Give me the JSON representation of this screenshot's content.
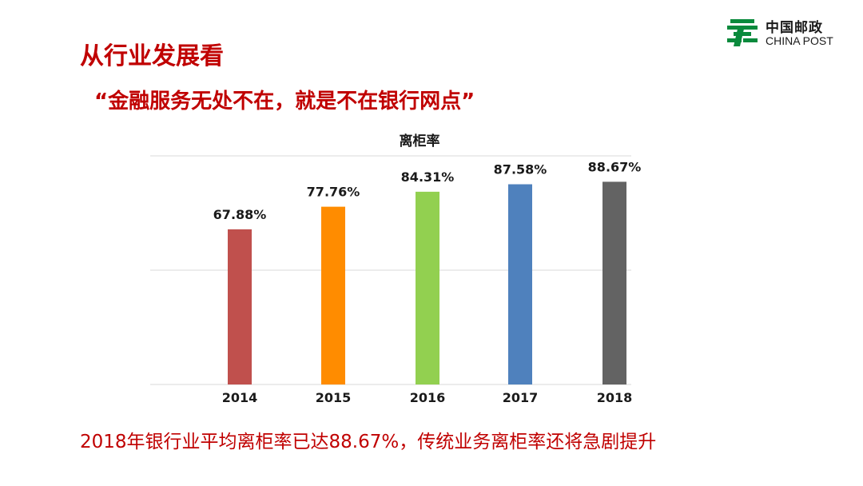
{
  "header": {
    "logo_cn": "中国邮政",
    "logo_en": "CHINA POST",
    "title": "从行业发展看",
    "quote": "“金融服务无处不在，就是不在银行网点”"
  },
  "footer": {
    "text": "2018年银行业平均离柜率已达88.67%，传统业务离柜率还将急剧提升"
  },
  "colors": {
    "brand_green": "#0a8a3c",
    "accent_red": "#c00000",
    "gridline": "#d9d9d9"
  },
  "icons": {
    "logo": "china-post-logo-icon"
  },
  "chart_data": {
    "type": "bar",
    "title": "离柜率",
    "categories": [
      "2014",
      "2015",
      "2016",
      "2017",
      "2018"
    ],
    "values": [
      67.88,
      77.76,
      84.31,
      87.58,
      88.67
    ],
    "data_labels": [
      "67.88%",
      "77.76%",
      "84.31%",
      "87.58%",
      "88.67%"
    ],
    "bar_colors": [
      "#c0504d",
      "#ff8c00",
      "#92d050",
      "#4f81bd",
      "#636363"
    ],
    "ylim": [
      0,
      100
    ],
    "grid": true,
    "legend": false
  }
}
